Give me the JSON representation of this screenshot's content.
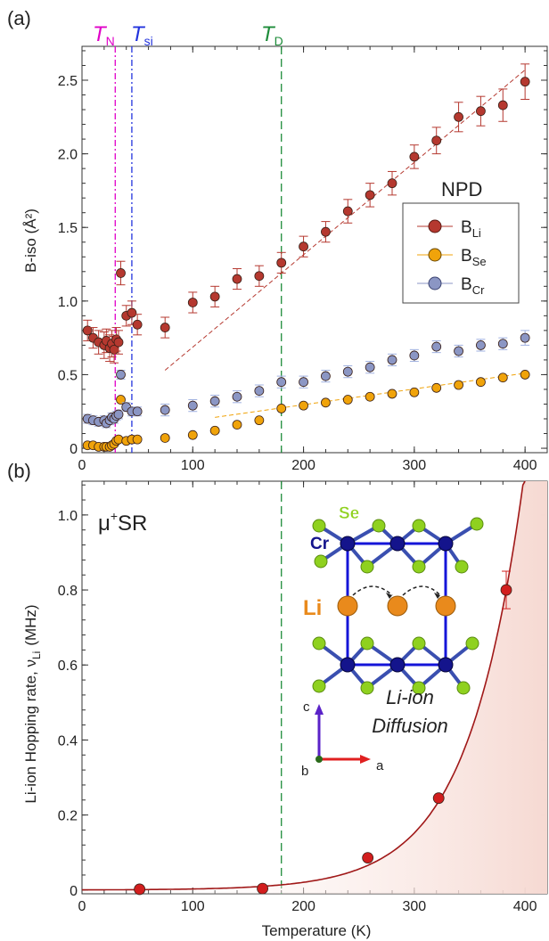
{
  "panels": {
    "a": {
      "label": "(a)"
    },
    "b": {
      "label": "(b)"
    }
  },
  "colors": {
    "li": "#b5382f",
    "se": "#f0a30a",
    "cr": "#8b96c4",
    "cr_err": "#9fb0e0",
    "tn": "#e000c8",
    "tsi": "#2233dd",
    "td": "#1e8c3a",
    "musr": "#d21e1e",
    "fit": "#a01818"
  },
  "chart_data": [
    {
      "type": "scatter",
      "panel": "(a)",
      "title": "",
      "xlabel": "",
      "ylabel": "B-iso (Å²)",
      "xlim": [
        0,
        420
      ],
      "ylim": [
        -0.03,
        2.73
      ],
      "xticks": [
        0,
        100,
        200,
        300,
        400
      ],
      "yticks": [
        0,
        0.5,
        1.0,
        1.5,
        2.0,
        2.5
      ],
      "ytick_labels": [
        "0",
        "0.5",
        "1.0",
        "1.5",
        "2.0",
        "2.5"
      ],
      "legend": {
        "title": "NPD",
        "placement": "right"
      },
      "vlines": [
        {
          "name": "T_N",
          "main": "T",
          "sub": "N",
          "x": 30,
          "color": "#e000c8",
          "style": "dashdot"
        },
        {
          "name": "T_si",
          "main": "T",
          "sub": "si",
          "x": 45,
          "color": "#2233dd",
          "style": "dashdot"
        },
        {
          "name": "T_D",
          "main": "T",
          "sub": "D",
          "x": 180,
          "color": "#1e8c3a",
          "style": "dashed"
        }
      ],
      "series": [
        {
          "name": "B_Li",
          "main": "B",
          "sub": "Li",
          "color": "#b5382f",
          "x": [
            5,
            10,
            15,
            20,
            22,
            25,
            27,
            29,
            31,
            33,
            35,
            40,
            45,
            50,
            75,
            100,
            120,
            140,
            160,
            180,
            200,
            220,
            240,
            260,
            280,
            300,
            320,
            340,
            360,
            380,
            400
          ],
          "y": [
            0.8,
            0.75,
            0.72,
            0.7,
            0.73,
            0.68,
            0.71,
            0.67,
            0.74,
            0.72,
            1.19,
            0.9,
            0.92,
            0.84,
            0.82,
            0.99,
            1.03,
            1.15,
            1.17,
            1.26,
            1.37,
            1.47,
            1.61,
            1.72,
            1.8,
            1.98,
            2.09,
            2.25,
            2.29,
            2.33,
            2.49
          ],
          "err": [
            0.07,
            0.07,
            0.08,
            0.09,
            0.08,
            0.09,
            0.09,
            0.09,
            0.08,
            0.08,
            0.08,
            0.07,
            0.08,
            0.07,
            0.07,
            0.07,
            0.07,
            0.07,
            0.07,
            0.07,
            0.07,
            0.07,
            0.08,
            0.08,
            0.08,
            0.08,
            0.09,
            0.1,
            0.1,
            0.11,
            0.12
          ]
        },
        {
          "name": "B_Se",
          "main": "B",
          "sub": "Se",
          "color": "#f0a30a",
          "x": [
            5,
            10,
            15,
            20,
            22,
            25,
            27,
            29,
            31,
            33,
            35,
            40,
            45,
            50,
            75,
            100,
            120,
            140,
            160,
            180,
            200,
            220,
            240,
            260,
            280,
            300,
            320,
            340,
            360,
            380,
            400
          ],
          "y": [
            0.02,
            0.02,
            0.01,
            0.01,
            0.01,
            0.01,
            0.02,
            0.03,
            0.05,
            0.06,
            0.33,
            0.05,
            0.06,
            0.06,
            0.07,
            0.09,
            0.12,
            0.16,
            0.19,
            0.27,
            0.29,
            0.31,
            0.33,
            0.35,
            0.37,
            0.38,
            0.41,
            0.43,
            0.45,
            0.48,
            0.5
          ],
          "err": []
        },
        {
          "name": "B_Cr",
          "main": "B",
          "sub": "Cr",
          "color": "#8b96c4",
          "x": [
            5,
            10,
            15,
            20,
            22,
            25,
            27,
            29,
            31,
            33,
            35,
            40,
            45,
            50,
            75,
            100,
            120,
            140,
            160,
            180,
            200,
            220,
            240,
            260,
            280,
            300,
            320,
            340,
            360,
            380,
            400
          ],
          "y": [
            0.2,
            0.19,
            0.18,
            0.19,
            0.17,
            0.19,
            0.21,
            0.2,
            0.22,
            0.23,
            0.5,
            0.28,
            0.25,
            0.25,
            0.26,
            0.29,
            0.32,
            0.35,
            0.39,
            0.45,
            0.45,
            0.49,
            0.52,
            0.55,
            0.6,
            0.63,
            0.69,
            0.66,
            0.7,
            0.71,
            0.75
          ],
          "err": [
            0.03,
            0.03,
            0.03,
            0.03,
            0.03,
            0.03,
            0.03,
            0.03,
            0.03,
            0.03,
            0.03,
            0.03,
            0.03,
            0.03,
            0.04,
            0.04,
            0.04,
            0.04,
            0.04,
            0.04,
            0.04,
            0.04,
            0.04,
            0.04,
            0.04,
            0.04,
            0.04,
            0.04,
            0.04,
            0.04,
            0.05
          ]
        }
      ],
      "fit_lines": [
        {
          "color": "#b5382f",
          "x": [
            75,
            400
          ],
          "y": [
            0.53,
            2.57
          ]
        },
        {
          "color": "#f0a30a",
          "x": [
            120,
            400
          ],
          "y": [
            0.21,
            0.51
          ]
        }
      ]
    },
    {
      "type": "scatter",
      "panel": "(b)",
      "title": "",
      "xlabel": "Temperature (K)",
      "ylabel_main": "Li-ion Hopping rate, ν",
      "ylabel_sub": "Li",
      "ylabel_unit": "(MHz)",
      "xlim": [
        0,
        420
      ],
      "ylim": [
        -0.01,
        1.09
      ],
      "xticks": [
        0,
        100,
        200,
        300,
        400
      ],
      "yticks": [
        0,
        0.2,
        0.4,
        0.6,
        0.8,
        1.0
      ],
      "ytick_labels": [
        "0",
        "0.2",
        "0.4",
        "0.6",
        "0.8",
        "1.0"
      ],
      "technique": {
        "mu": "μ",
        "sup": "+",
        "rest": "SR"
      },
      "vlines": [
        {
          "name": "T_D",
          "x": 180,
          "color": "#1e8c3a",
          "style": "dashed"
        }
      ],
      "series": [
        {
          "name": "nu_Li",
          "color": "#d21e1e",
          "x": [
            52,
            163,
            258,
            322,
            383
          ],
          "y": [
            0.002,
            0.004,
            0.086,
            0.245,
            0.8
          ],
          "err": [
            0,
            0,
            0,
            0,
            0.05
          ]
        }
      ],
      "fit": {
        "type": "arrhenius",
        "x_start": 0,
        "x_end": 420,
        "anchor_x": 383,
        "anchor_y": 0.8,
        "rate": 0.02
      },
      "inset": {
        "atoms": {
          "se": "Se",
          "cr": "Cr",
          "li": "Li"
        },
        "axes": {
          "a": "a",
          "b": "b",
          "c": "c"
        },
        "caption_line1": "Li-ion",
        "caption_line2": "Diffusion"
      }
    }
  ]
}
